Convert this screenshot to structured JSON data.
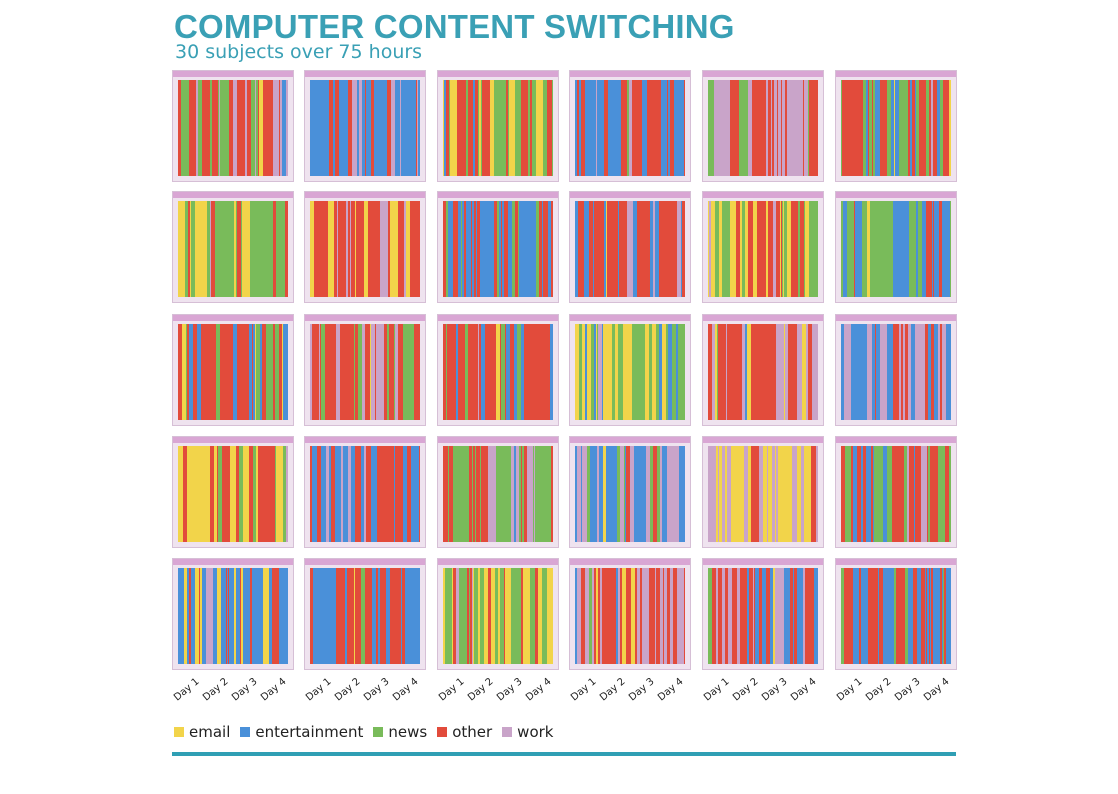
{
  "header": {
    "title": "COMPUTER CONTENT SWITCHING",
    "subtitle": "30 subjects over 75 hours"
  },
  "colors": {
    "email": "#f2d44a",
    "entertainment": "#4a90d9",
    "news": "#79bb5a",
    "other": "#e24b3b",
    "work": "#c9a4c9",
    "title": "#3aa0b5"
  },
  "legend": [
    {
      "key": "email",
      "label": "email"
    },
    {
      "key": "entertainment",
      "label": "entertainment"
    },
    {
      "key": "news",
      "label": "news"
    },
    {
      "key": "other",
      "label": "other"
    },
    {
      "key": "work",
      "label": "work"
    }
  ],
  "chart_data": {
    "type": "heatmap",
    "title": "COMPUTER CONTENT SWITCHING",
    "subtitle": "30 subjects over 75 hours",
    "categories": [
      "email",
      "entertainment",
      "news",
      "other",
      "work"
    ],
    "x_tick_labels": [
      "Day 1",
      "Day 2",
      "Day 3",
      "Day 4"
    ],
    "subjects": 30,
    "layout": "5 rows x 6 columns of small-multiple stripe panels",
    "panels": [
      {
        "dominant": [
          "other",
          "work",
          "news"
        ]
      },
      {
        "dominant": [
          "entertainment",
          "other",
          "work"
        ]
      },
      {
        "dominant": [
          "other",
          "news",
          "email"
        ]
      },
      {
        "dominant": [
          "other",
          "entertainment",
          "work"
        ]
      },
      {
        "dominant": [
          "work",
          "other",
          "news"
        ]
      },
      {
        "dominant": [
          "other",
          "entertainment",
          "news"
        ]
      },
      {
        "dominant": [
          "news",
          "other",
          "email"
        ]
      },
      {
        "dominant": [
          "other",
          "email",
          "work"
        ]
      },
      {
        "dominant": [
          "entertainment",
          "other",
          "news"
        ]
      },
      {
        "dominant": [
          "other",
          "entertainment",
          "work"
        ]
      },
      {
        "dominant": [
          "other",
          "email",
          "news"
        ]
      },
      {
        "dominant": [
          "entertainment",
          "news",
          "other"
        ]
      },
      {
        "dominant": [
          "entertainment",
          "other",
          "news"
        ]
      },
      {
        "dominant": [
          "other",
          "work",
          "news"
        ]
      },
      {
        "dominant": [
          "other",
          "entertainment",
          "news"
        ]
      },
      {
        "dominant": [
          "email",
          "news",
          "entertainment"
        ]
      },
      {
        "dominant": [
          "other",
          "work",
          "email"
        ]
      },
      {
        "dominant": [
          "entertainment",
          "work",
          "other"
        ]
      },
      {
        "dominant": [
          "email",
          "other",
          "news"
        ]
      },
      {
        "dominant": [
          "other",
          "entertainment",
          "work"
        ]
      },
      {
        "dominant": [
          "other",
          "news",
          "work"
        ]
      },
      {
        "dominant": [
          "entertainment",
          "work",
          "news"
        ]
      },
      {
        "dominant": [
          "work",
          "email",
          "other"
        ]
      },
      {
        "dominant": [
          "other",
          "news",
          "entertainment"
        ]
      },
      {
        "dominant": [
          "entertainment",
          "email",
          "other"
        ]
      },
      {
        "dominant": [
          "other",
          "entertainment",
          "news"
        ]
      },
      {
        "dominant": [
          "email",
          "news",
          "other"
        ]
      },
      {
        "dominant": [
          "work",
          "other",
          "email"
        ]
      },
      {
        "dominant": [
          "other",
          "entertainment",
          "work"
        ]
      },
      {
        "dominant": [
          "entertainment",
          "other",
          "news"
        ]
      }
    ]
  }
}
